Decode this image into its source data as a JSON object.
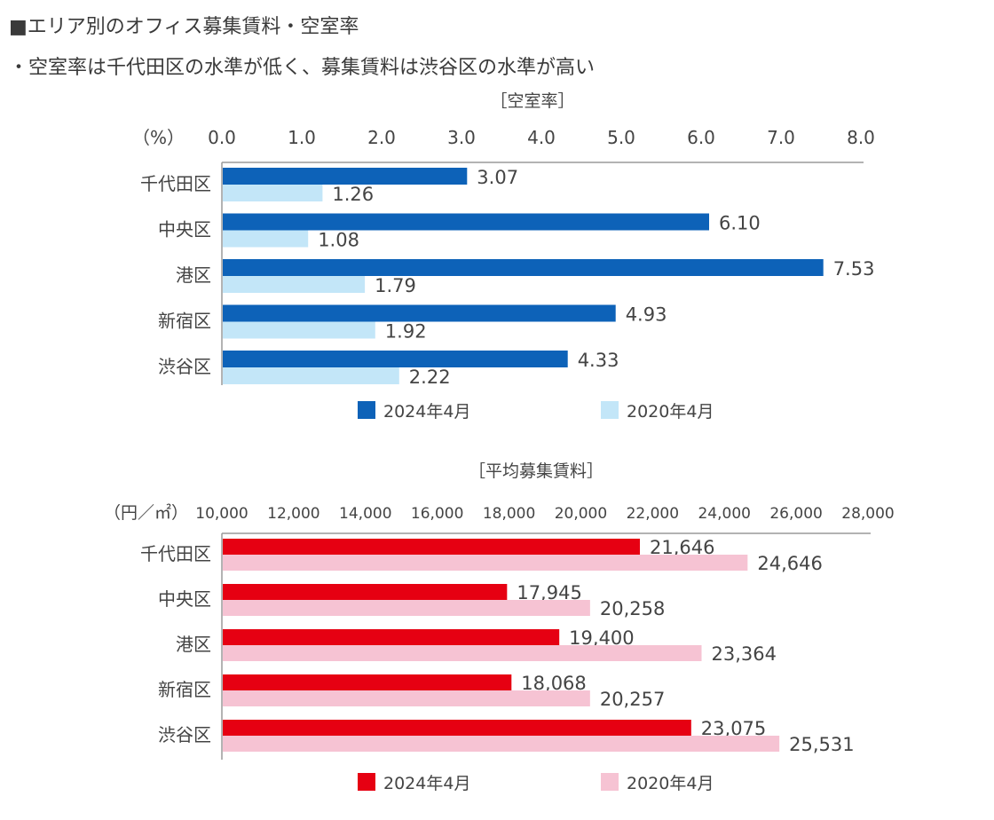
{
  "header": {
    "title": "■エリア別のオフィス募集賃料・空室率",
    "bullet": "・空室率は千代田区の水準が低く、募集賃料は渋谷区の水準が高い"
  },
  "chart_data": [
    {
      "type": "bar",
      "orientation": "horizontal",
      "title": "［空室率］",
      "unit_label": "（%）",
      "categories": [
        "千代田区",
        "中央区",
        "港区",
        "新宿区",
        "渋谷区"
      ],
      "xlim": [
        0,
        8
      ],
      "ticks": [
        "0.0",
        "1.0",
        "2.0",
        "3.0",
        "4.0",
        "5.0",
        "6.0",
        "7.0",
        "8.0"
      ],
      "series": [
        {
          "name": "2024年4月",
          "color": "#0d62b8",
          "values": [
            3.07,
            6.1,
            7.53,
            4.93,
            4.33
          ],
          "labels": [
            "3.07",
            "6.10",
            "7.53",
            "4.93",
            "4.33"
          ]
        },
        {
          "name": "2020年4月",
          "color": "#c3e6f8",
          "values": [
            1.26,
            1.08,
            1.79,
            1.92,
            2.22
          ],
          "labels": [
            "1.26",
            "1.08",
            "1.79",
            "1.92",
            "2.22"
          ]
        }
      ],
      "legend_position": "bottom"
    },
    {
      "type": "bar",
      "orientation": "horizontal",
      "title": "［平均募集賃料］",
      "unit_label": "（円／㎡）",
      "categories": [
        "千代田区",
        "中央区",
        "港区",
        "新宿区",
        "渋谷区"
      ],
      "xlim": [
        10000,
        28000
      ],
      "ticks": [
        "10,000",
        "12,000",
        "14,000",
        "16,000",
        "18,000",
        "20,000",
        "22,000",
        "24,000",
        "26,000",
        "28,000"
      ],
      "series": [
        {
          "name": "2024年4月",
          "color": "#e60012",
          "values": [
            21646,
            17945,
            19400,
            18068,
            23075
          ],
          "labels": [
            "21,646",
            "17,945",
            "19,400",
            "18,068",
            "23,075"
          ]
        },
        {
          "name": "2020年4月",
          "color": "#f6c3d3",
          "values": [
            24646,
            20258,
            23364,
            20257,
            25531
          ],
          "labels": [
            "24,646",
            "20,258",
            "23,364",
            "20,257",
            "25,531"
          ]
        }
      ],
      "legend_position": "bottom"
    }
  ]
}
